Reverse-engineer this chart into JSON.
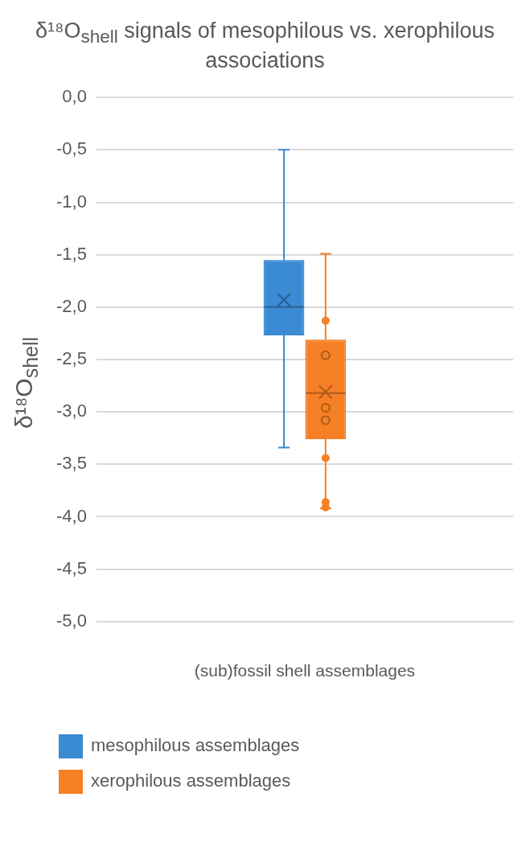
{
  "chart_data": {
    "type": "box",
    "title": "δ¹⁸O$_{shell}$ signals of mesophilous vs. xerophilous associations",
    "ylabel": "δ¹⁸O$_{shell}$",
    "categories": [
      "(sub)fossil shell assemblages"
    ],
    "series": [
      {
        "name": "mesophilous assemblages",
        "color": "#3b8ad4",
        "boxes": [
          {
            "low": -3.34,
            "q1": -2.27,
            "median": -2.0,
            "q3": -1.55,
            "high": -0.5,
            "mean": -1.93
          }
        ]
      },
      {
        "name": "xerophilous assemblages",
        "color": "#f58025",
        "boxes": [
          {
            "low": -3.92,
            "q1": -3.26,
            "median": -2.82,
            "q3": -2.31,
            "high": -1.49,
            "mean": -2.81,
            "outliers": [
              -2.13,
              -2.46,
              -2.96,
              -3.08,
              -3.44,
              -3.86,
              -3.91
            ]
          }
        ]
      }
    ],
    "ylim": [
      -5.0,
      0.0
    ],
    "yticks": [
      {
        "value": 0,
        "label": "0,0"
      },
      {
        "value": -0.5,
        "label": "-0,5"
      },
      {
        "value": -1,
        "label": "-1,0"
      },
      {
        "value": -1.5,
        "label": "-1,5"
      },
      {
        "value": -2,
        "label": "-2,0"
      },
      {
        "value": -2.5,
        "label": "-2,5"
      },
      {
        "value": -3,
        "label": "-3,0"
      },
      {
        "value": -3.5,
        "label": "-3,5"
      },
      {
        "value": -4,
        "label": "-4,0"
      },
      {
        "value": -4.5,
        "label": "-4,5"
      },
      {
        "value": -5,
        "label": "-5,0"
      }
    ],
    "grid": "y",
    "legend": "bottom"
  }
}
